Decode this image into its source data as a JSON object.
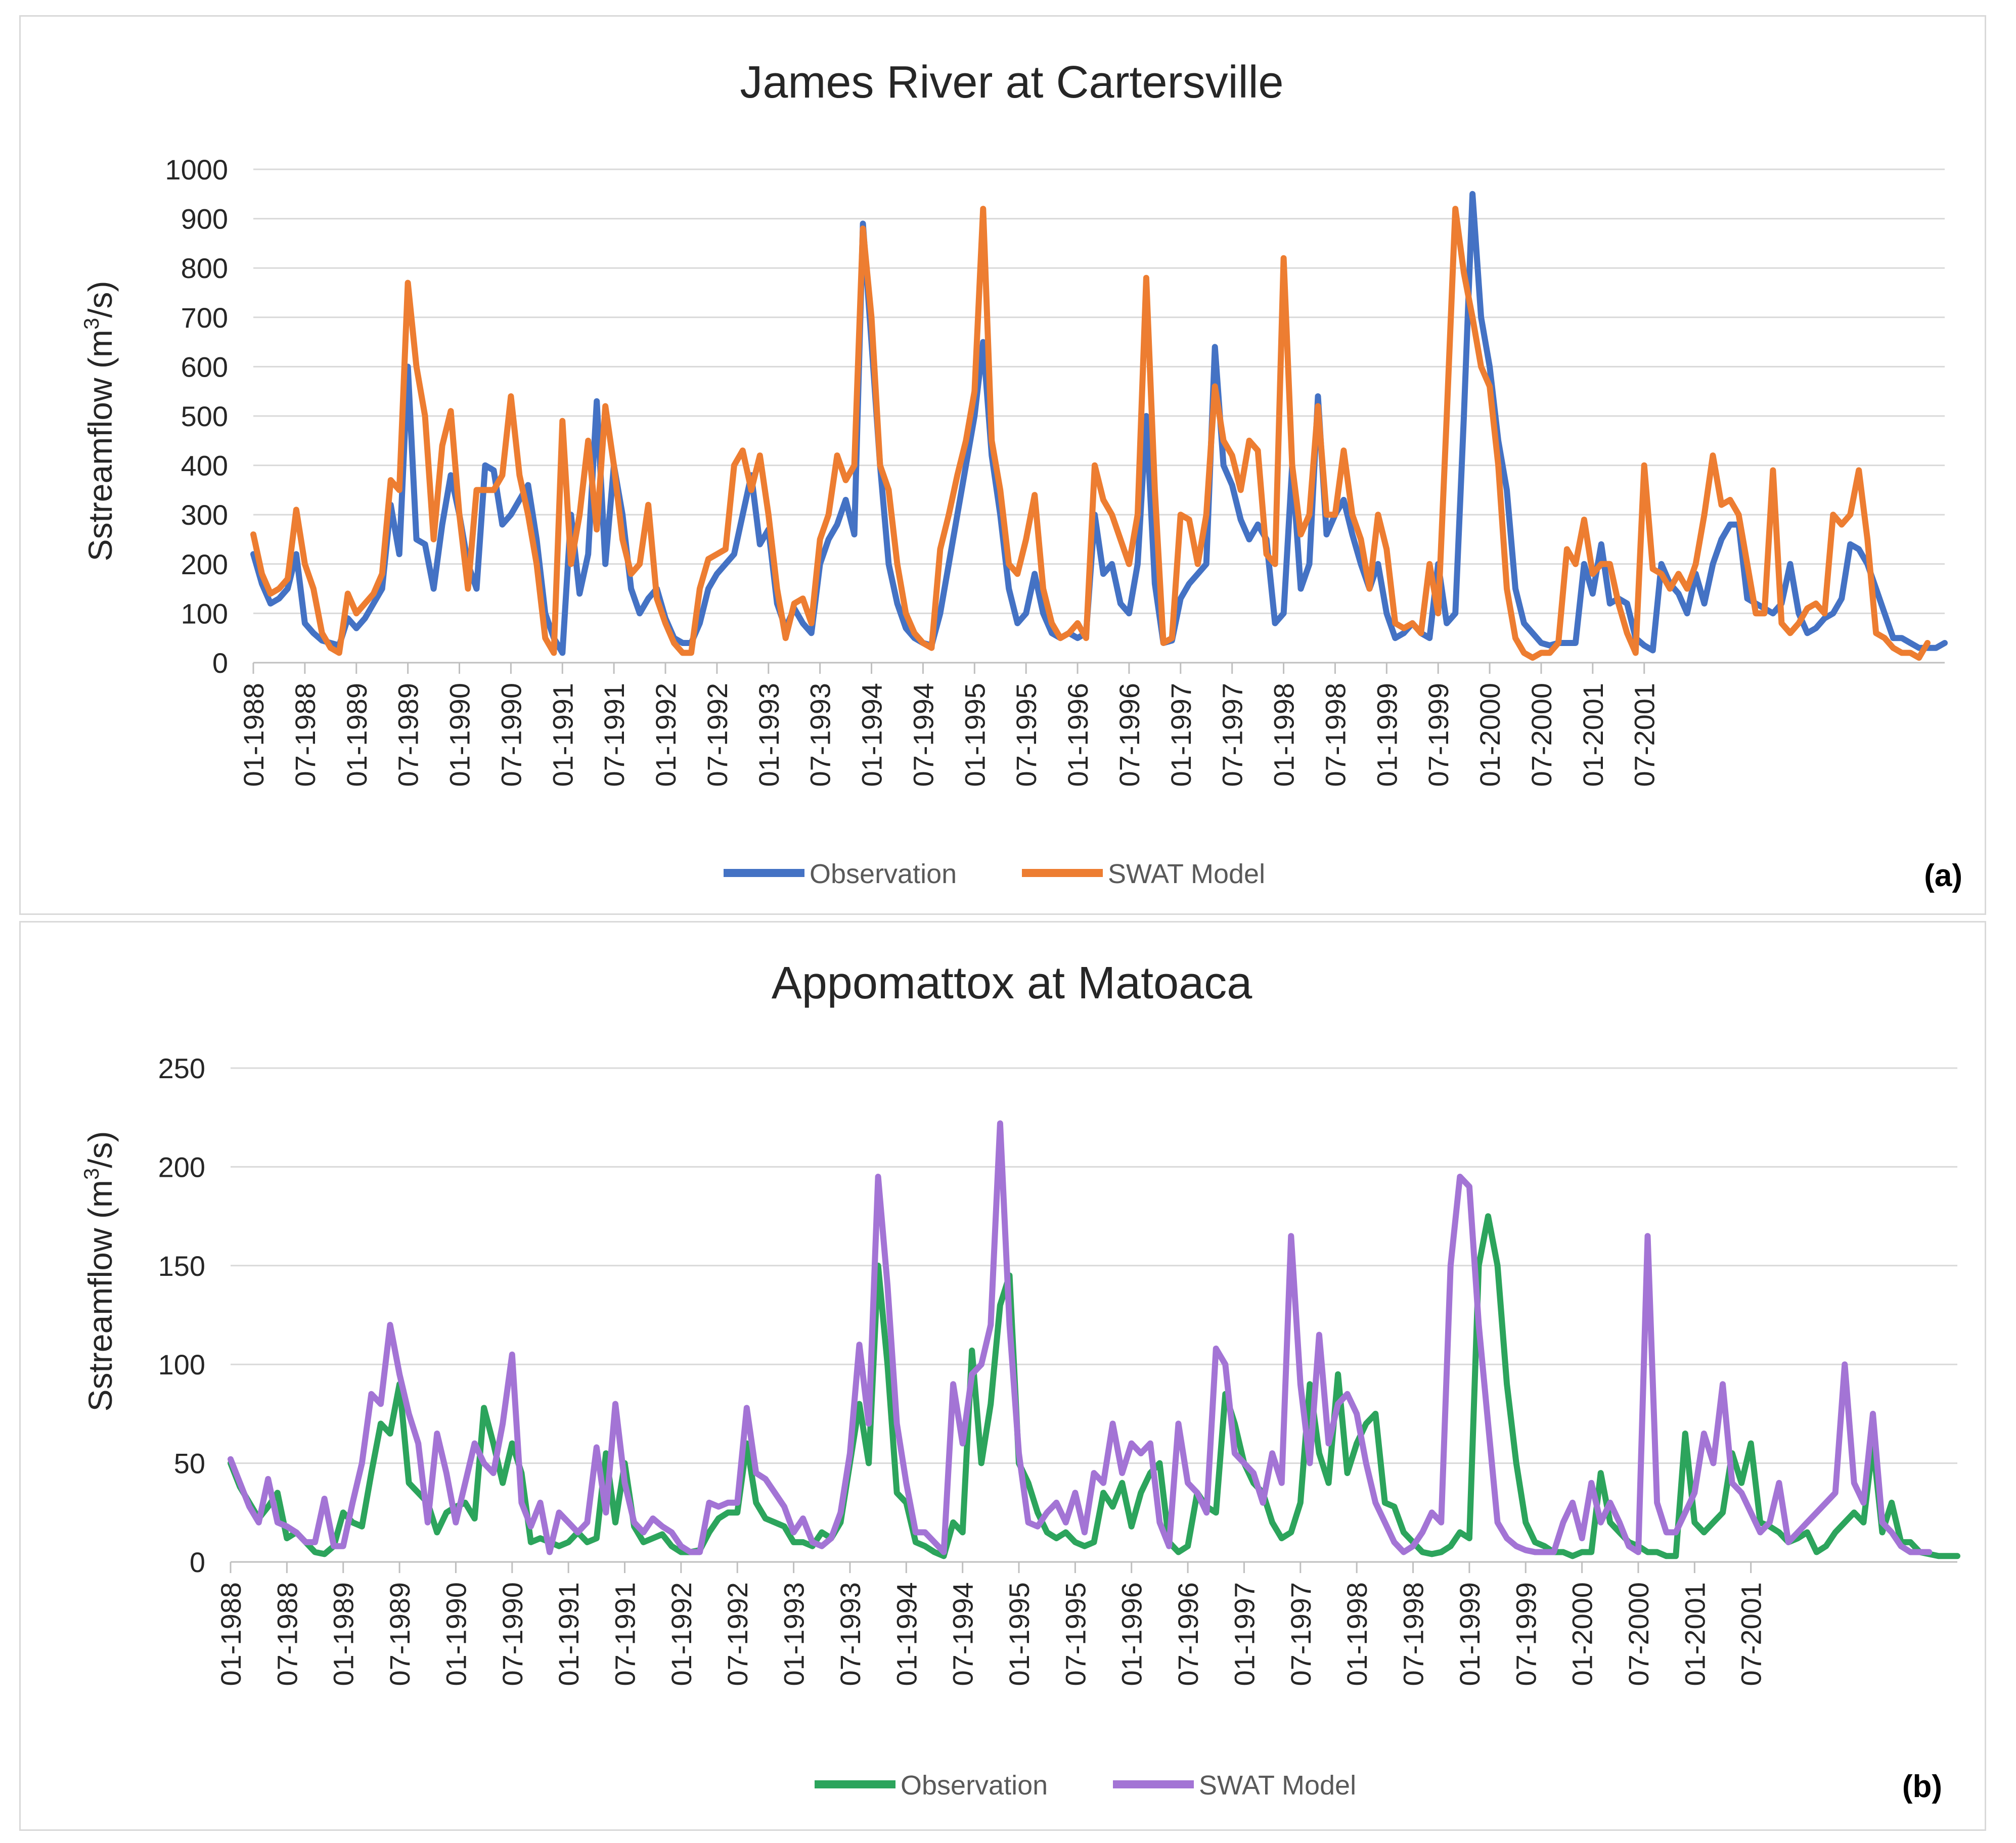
{
  "chart_data": [
    {
      "type": "line",
      "title": "James River at Cartersville",
      "panel_label": "(a)",
      "xlabel": "",
      "ylabel": "Sstreamflow (m³/s)",
      "ylabel_prefix": "Sstreamflow (m",
      "ylabel_sup": "3",
      "ylabel_suffix": "/s)",
      "ylim": [
        0,
        1000
      ],
      "yticks": [
        0,
        100,
        200,
        300,
        400,
        500,
        600,
        700,
        800,
        900,
        1000
      ],
      "grid": true,
      "legend_position": "bottom-center",
      "x_start": "01-1988",
      "x_labels": [
        "01-1988",
        "07-1988",
        "01-1989",
        "07-1989",
        "01-1990",
        "07-1990",
        "01-1991",
        "07-1991",
        "01-1992",
        "07-1992",
        "01-1993",
        "07-1993",
        "01-1994",
        "07-1994",
        "01-1995",
        "07-1995",
        "01-1996",
        "07-1996",
        "01-1997",
        "07-1997",
        "01-1998",
        "07-1998",
        "01-1999",
        "07-1999",
        "01-2000",
        "07-2000",
        "01-2001",
        "07-2001"
      ],
      "series": [
        {
          "name": "Observation",
          "color": "#4472c4",
          "values": [
            220,
            160,
            120,
            130,
            150,
            220,
            80,
            60,
            45,
            40,
            35,
            90,
            70,
            90,
            120,
            150,
            320,
            220,
            600,
            250,
            240,
            150,
            280,
            380,
            300,
            200,
            150,
            400,
            390,
            280,
            300,
            330,
            360,
            250,
            100,
            50,
            20,
            300,
            140,
            220,
            530,
            200,
            400,
            300,
            150,
            100,
            130,
            150,
            90,
            50,
            40,
            40,
            80,
            150,
            180,
            200,
            220,
            300,
            380,
            240,
            270,
            120,
            70,
            110,
            80,
            60,
            200,
            250,
            280,
            330,
            260,
            890,
            650,
            400,
            200,
            120,
            70,
            50,
            40,
            35,
            100,
            200,
            300,
            400,
            500,
            650,
            420,
            300,
            150,
            80,
            100,
            180,
            100,
            60,
            50,
            60,
            50,
            60,
            300,
            180,
            200,
            120,
            100,
            200,
            500,
            160,
            40,
            45,
            130,
            160,
            180,
            200,
            640,
            400,
            360,
            290,
            250,
            280,
            250,
            80,
            100,
            400,
            150,
            200,
            540,
            260,
            300,
            330,
            260,
            200,
            150,
            200,
            100,
            50,
            60,
            80,
            60,
            50,
            200,
            80,
            100,
            500,
            950,
            700,
            600,
            450,
            350,
            150,
            80,
            60,
            40,
            35,
            40,
            40,
            40,
            200,
            140,
            240,
            120,
            130,
            120,
            50,
            35,
            25,
            200,
            160,
            140,
            100,
            180,
            120,
            200,
            250,
            280,
            280,
            130,
            120,
            110,
            100,
            120,
            200,
            100,
            60,
            70,
            90,
            100,
            130,
            240,
            230,
            200,
            150,
            100,
            50,
            50,
            40,
            30,
            30,
            30,
            40
          ]
        },
        {
          "name": "SWAT Model",
          "color": "#ed7d31",
          "values": [
            260,
            180,
            140,
            150,
            170,
            310,
            200,
            150,
            60,
            30,
            20,
            140,
            100,
            120,
            140,
            180,
            370,
            350,
            770,
            600,
            500,
            250,
            440,
            510,
            300,
            150,
            350,
            350,
            350,
            380,
            540,
            380,
            300,
            200,
            50,
            20,
            490,
            200,
            300,
            450,
            270,
            520,
            400,
            250,
            180,
            200,
            320,
            130,
            80,
            40,
            20,
            20,
            150,
            210,
            220,
            230,
            400,
            430,
            350,
            420,
            300,
            150,
            50,
            120,
            130,
            80,
            250,
            300,
            420,
            370,
            400,
            880,
            700,
            400,
            350,
            200,
            100,
            60,
            40,
            30,
            230,
            300,
            380,
            450,
            550,
            920,
            450,
            350,
            200,
            180,
            250,
            340,
            150,
            80,
            50,
            60,
            80,
            50,
            400,
            330,
            300,
            250,
            200,
            300,
            780,
            350,
            40,
            50,
            300,
            290,
            200,
            300,
            560,
            450,
            420,
            350,
            450,
            430,
            220,
            200,
            820,
            400,
            260,
            300,
            520,
            300,
            300,
            430,
            300,
            250,
            150,
            300,
            230,
            80,
            70,
            80,
            60,
            200,
            100,
            500,
            920,
            790,
            700,
            600,
            560,
            400,
            150,
            50,
            20,
            10,
            20,
            20,
            40,
            230,
            200,
            290,
            180,
            200,
            200,
            120,
            60,
            20,
            400,
            190,
            180,
            150,
            180,
            150,
            200,
            300,
            420,
            320,
            330,
            300,
            200,
            100,
            100,
            390,
            80,
            60,
            80,
            110,
            120,
            100,
            300,
            280,
            300,
            390,
            250,
            60,
            50,
            30,
            20,
            20,
            10,
            40
          ]
        }
      ]
    },
    {
      "type": "line",
      "title": "Appomattox at Matoaca",
      "panel_label": "(b)",
      "xlabel": "",
      "ylabel": "Sstreamflow (m³/s)",
      "ylabel_prefix": "Sstreamflow (m",
      "ylabel_sup": "3",
      "ylabel_suffix": "/s)",
      "ylim": [
        0,
        250
      ],
      "yticks": [
        0,
        50,
        100,
        150,
        200,
        250
      ],
      "grid": true,
      "legend_position": "bottom-center",
      "x_start": "01-1988",
      "x_labels": [
        "01-1988",
        "07-1988",
        "01-1989",
        "07-1989",
        "01-1990",
        "07-1990",
        "01-1991",
        "07-1991",
        "01-1992",
        "07-1992",
        "01-1993",
        "07-1993",
        "01-1994",
        "07-1994",
        "01-1995",
        "07-1995",
        "01-1996",
        "07-1996",
        "01-1997",
        "07-1997",
        "01-1998",
        "07-1998",
        "01-1999",
        "07-1999",
        "01-2000",
        "07-2000",
        "01-2001",
        "07-2001"
      ],
      "series": [
        {
          "name": "Observation",
          "color": "#2ca45c",
          "values": [
            50,
            38,
            30,
            22,
            28,
            35,
            12,
            15,
            10,
            5,
            4,
            8,
            25,
            20,
            18,
            45,
            70,
            65,
            90,
            40,
            35,
            30,
            15,
            25,
            28,
            30,
            22,
            78,
            60,
            40,
            60,
            45,
            10,
            12,
            10,
            8,
            10,
            15,
            10,
            12,
            55,
            20,
            50,
            18,
            10,
            12,
            14,
            8,
            5,
            5,
            6,
            15,
            22,
            25,
            25,
            60,
            30,
            22,
            20,
            18,
            10,
            10,
            8,
            15,
            12,
            20,
            50,
            80,
            50,
            150,
            100,
            35,
            30,
            10,
            8,
            5,
            3,
            20,
            15,
            107,
            50,
            80,
            130,
            145,
            50,
            40,
            25,
            15,
            12,
            15,
            10,
            8,
            10,
            35,
            28,
            40,
            18,
            35,
            45,
            50,
            10,
            5,
            8,
            35,
            28,
            25,
            85,
            70,
            50,
            40,
            35,
            20,
            12,
            15,
            30,
            90,
            55,
            40,
            95,
            45,
            60,
            70,
            75,
            30,
            28,
            15,
            10,
            5,
            4,
            5,
            8,
            15,
            12,
            150,
            175,
            150,
            90,
            50,
            20,
            10,
            8,
            5,
            5,
            3,
            5,
            5,
            45,
            20,
            15,
            10,
            8,
            5,
            5,
            3,
            3,
            65,
            20,
            15,
            20,
            25,
            55,
            40,
            60,
            20,
            18,
            15,
            10,
            12,
            15,
            5,
            8,
            15,
            20,
            25,
            20,
            60,
            15,
            30,
            10,
            10,
            5,
            4,
            3,
            3,
            3
          ]
        },
        {
          "name": "SWAT Model",
          "color": "#a374d5",
          "values": [
            52,
            40,
            28,
            20,
            42,
            20,
            18,
            15,
            10,
            10,
            32,
            8,
            8,
            30,
            50,
            85,
            80,
            120,
            95,
            75,
            60,
            20,
            65,
            45,
            20,
            40,
            60,
            50,
            45,
            70,
            105,
            30,
            18,
            30,
            5,
            25,
            20,
            15,
            20,
            58,
            25,
            80,
            40,
            20,
            15,
            22,
            18,
            15,
            8,
            5,
            5,
            30,
            28,
            30,
            30,
            78,
            45,
            42,
            35,
            28,
            15,
            22,
            10,
            8,
            12,
            25,
            55,
            110,
            70,
            195,
            140,
            70,
            40,
            15,
            15,
            10,
            5,
            90,
            60,
            95,
            100,
            120,
            222,
            120,
            55,
            20,
            18,
            25,
            30,
            20,
            35,
            15,
            45,
            40,
            70,
            45,
            60,
            55,
            60,
            20,
            8,
            70,
            40,
            35,
            25,
            108,
            100,
            55,
            50,
            45,
            30,
            55,
            40,
            165,
            90,
            50,
            115,
            60,
            80,
            85,
            75,
            50,
            30,
            20,
            10,
            5,
            8,
            15,
            25,
            20,
            150,
            195,
            190,
            120,
            70,
            20,
            12,
            8,
            6,
            5,
            5,
            5,
            20,
            30,
            12,
            40,
            20,
            30,
            20,
            8,
            5,
            165,
            30,
            15,
            15,
            25,
            35,
            65,
            50,
            90,
            40,
            35,
            25,
            15,
            20,
            40,
            10,
            15,
            20,
            25,
            30,
            35,
            100,
            40,
            30,
            75,
            20,
            15,
            8,
            5,
            5,
            5
          ]
        }
      ]
    }
  ]
}
